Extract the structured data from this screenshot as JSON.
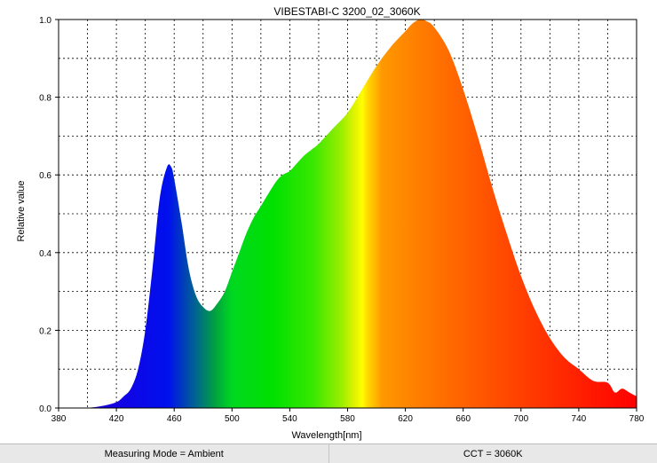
{
  "chart_data": {
    "type": "area",
    "title": "VIBESTABI-C 3200_02_3060K",
    "xlabel": "Wavelength[nm]",
    "ylabel": "Relative value",
    "xlim": [
      380,
      780
    ],
    "ylim": [
      0,
      1.0
    ],
    "x_ticks": [
      380,
      420,
      460,
      500,
      540,
      580,
      620,
      660,
      700,
      740,
      780
    ],
    "y_ticks": [
      0.0,
      0.2,
      0.4,
      0.6,
      0.8,
      1.0
    ],
    "y_tick_labels": [
      "0.0",
      "0.2",
      "0.4",
      "0.6",
      "0.8",
      "1.0"
    ],
    "grid": true,
    "fill": "visible-spectrum gradient",
    "x": [
      400,
      410,
      420,
      425,
      430,
      435,
      440,
      445,
      450,
      455,
      458,
      460,
      465,
      470,
      475,
      480,
      485,
      490,
      495,
      500,
      505,
      510,
      515,
      520,
      530,
      535,
      540,
      545,
      550,
      555,
      560,
      570,
      580,
      590,
      600,
      610,
      620,
      625,
      630,
      635,
      640,
      650,
      660,
      670,
      680,
      690,
      700,
      710,
      720,
      730,
      740,
      750,
      760,
      765,
      770,
      775,
      780
    ],
    "values": [
      0.0,
      0.005,
      0.015,
      0.03,
      0.05,
      0.1,
      0.2,
      0.36,
      0.54,
      0.62,
      0.62,
      0.59,
      0.48,
      0.36,
      0.29,
      0.26,
      0.25,
      0.27,
      0.3,
      0.35,
      0.4,
      0.45,
      0.49,
      0.52,
      0.58,
      0.6,
      0.61,
      0.63,
      0.65,
      0.665,
      0.68,
      0.72,
      0.76,
      0.82,
      0.88,
      0.93,
      0.97,
      0.99,
      1.0,
      0.995,
      0.98,
      0.92,
      0.82,
      0.7,
      0.57,
      0.45,
      0.34,
      0.25,
      0.18,
      0.13,
      0.1,
      0.07,
      0.065,
      0.04,
      0.05,
      0.04,
      0.03
    ]
  },
  "status": {
    "mode": "Measuring Mode = Ambient",
    "cct": "CCT = 3060K"
  }
}
